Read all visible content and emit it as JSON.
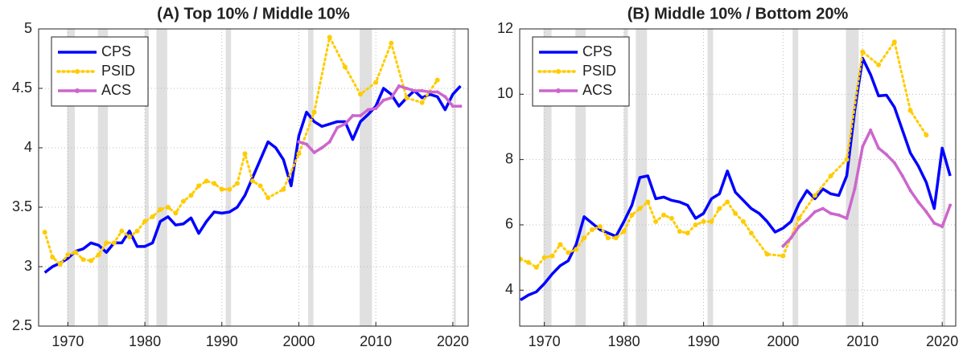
{
  "chart_data": [
    {
      "type": "line",
      "title": "(A) Top 10% / Middle 10%",
      "xlim": [
        1966.2,
        2022
      ],
      "xticks": [
        1970,
        1980,
        1990,
        2000,
        2010,
        2020
      ],
      "ylim": [
        2.5,
        5
      ],
      "yticks": [
        2.5,
        3,
        3.5,
        4,
        4.5,
        5
      ],
      "grid": true,
      "legend": "upper left",
      "shaded_periods": [
        [
          1969.9,
          1970.9
        ],
        [
          1973.9,
          1975.2
        ],
        [
          1980.0,
          1980.5
        ],
        [
          1981.5,
          1982.9
        ],
        [
          1990.5,
          1991.2
        ],
        [
          2001.2,
          2001.9
        ],
        [
          2007.9,
          2009.5
        ],
        [
          2020.1,
          2020.4
        ]
      ],
      "series": [
        {
          "name": "CPS",
          "color": "#0000ff",
          "line_style": "solid",
          "marker": "none",
          "x": [
            1967,
            1968,
            1969,
            1970,
            1971,
            1972,
            1973,
            1974,
            1975,
            1976,
            1977,
            1978,
            1979,
            1980,
            1981,
            1982,
            1983,
            1984,
            1985,
            1986,
            1987,
            1988,
            1989,
            1990,
            1991,
            1992,
            1993,
            1994,
            1995,
            1996,
            1997,
            1998,
            1999,
            2000,
            2001,
            2002,
            2003,
            2004,
            2005,
            2006,
            2007,
            2008,
            2009,
            2010,
            2011,
            2012,
            2013,
            2014,
            2015,
            2016,
            2017,
            2018,
            2019,
            2020,
            2021
          ],
          "values": [
            2.95,
            3.0,
            3.03,
            3.07,
            3.13,
            3.15,
            3.2,
            3.18,
            3.12,
            3.2,
            3.2,
            3.3,
            3.17,
            3.17,
            3.2,
            3.38,
            3.42,
            3.35,
            3.36,
            3.41,
            3.28,
            3.38,
            3.46,
            3.45,
            3.46,
            3.5,
            3.6,
            3.75,
            3.9,
            4.05,
            4.0,
            3.9,
            3.68,
            4.1,
            4.3,
            4.22,
            4.18,
            4.2,
            4.22,
            4.22,
            4.07,
            4.22,
            4.28,
            4.35,
            4.5,
            4.45,
            4.35,
            4.42,
            4.48,
            4.42,
            4.45,
            4.43,
            4.32,
            4.45,
            4.52
          ]
        },
        {
          "name": "PSID",
          "color": "#ffcc00",
          "line_style": "dotted",
          "marker": "dot",
          "x": [
            1967,
            1968,
            1969,
            1970,
            1971,
            1972,
            1973,
            1974,
            1975,
            1976,
            1977,
            1978,
            1979,
            1980,
            1981,
            1982,
            1983,
            1984,
            1985,
            1986,
            1987,
            1988,
            1989,
            1990,
            1991,
            1992,
            1993,
            1994,
            1995,
            1996,
            1998,
            2000,
            2002,
            2004,
            2006,
            2008,
            2010,
            2012,
            2014,
            2016,
            2018
          ],
          "values": [
            3.29,
            3.08,
            3.02,
            3.1,
            3.12,
            3.06,
            3.05,
            3.1,
            3.2,
            3.2,
            3.3,
            3.25,
            3.3,
            3.38,
            3.42,
            3.48,
            3.5,
            3.45,
            3.55,
            3.6,
            3.68,
            3.72,
            3.7,
            3.65,
            3.65,
            3.7,
            3.95,
            3.72,
            3.68,
            3.58,
            3.65,
            3.95,
            4.3,
            4.93,
            4.68,
            4.45,
            4.55,
            4.88,
            4.42,
            4.38,
            4.57
          ]
        },
        {
          "name": "ACS",
          "color": "#cc66cc",
          "line_style": "solid",
          "marker": "plus",
          "x": [
            2000,
            2001,
            2002,
            2003,
            2004,
            2005,
            2006,
            2007,
            2008,
            2009,
            2010,
            2011,
            2012,
            2013,
            2014,
            2015,
            2016,
            2017,
            2018,
            2019,
            2020,
            2021
          ],
          "values": [
            4.05,
            4.03,
            3.96,
            4.0,
            4.05,
            4.17,
            4.2,
            4.27,
            4.27,
            4.32,
            4.33,
            4.4,
            4.42,
            4.52,
            4.5,
            4.48,
            4.48,
            4.47,
            4.47,
            4.43,
            4.35,
            4.35
          ]
        }
      ]
    },
    {
      "type": "line",
      "title": "(B) Middle 10% / Bottom 20%",
      "xlim": [
        1966.9,
        2021.7
      ],
      "xticks": [
        1970,
        1980,
        1990,
        2000,
        2010,
        2020
      ],
      "ylim": [
        2.9,
        12
      ],
      "yticks": [
        4,
        6,
        8,
        10,
        12
      ],
      "grid": true,
      "legend": "upper left",
      "shaded_periods": [
        [
          1969.9,
          1970.9
        ],
        [
          1973.9,
          1975.2
        ],
        [
          1980.0,
          1980.5
        ],
        [
          1981.5,
          1982.9
        ],
        [
          1990.5,
          1991.2
        ],
        [
          2001.2,
          2001.9
        ],
        [
          2007.9,
          2009.5
        ],
        [
          2020.1,
          2020.4
        ]
      ],
      "series": [
        {
          "name": "CPS",
          "color": "#0000ff",
          "line_style": "solid",
          "marker": "none",
          "x": [
            1967,
            1968,
            1969,
            1970,
            1971,
            1972,
            1973,
            1974,
            1975,
            1976,
            1977,
            1978,
            1979,
            1980,
            1981,
            1982,
            1983,
            1984,
            1985,
            1986,
            1987,
            1988,
            1989,
            1990,
            1991,
            1992,
            1993,
            1994,
            1995,
            1996,
            1997,
            1998,
            1999,
            2000,
            2001,
            2002,
            2003,
            2004,
            2005,
            2006,
            2007,
            2008,
            2009,
            2010,
            2011,
            2012,
            2013,
            2014,
            2015,
            2016,
            2017,
            2018,
            2019,
            2020,
            2021
          ],
          "values": [
            3.7,
            3.85,
            3.95,
            4.2,
            4.5,
            4.75,
            4.9,
            5.4,
            6.25,
            6.05,
            5.85,
            5.75,
            5.65,
            6.1,
            6.6,
            7.45,
            7.5,
            6.8,
            6.85,
            6.75,
            6.7,
            6.6,
            6.2,
            6.35,
            6.8,
            6.95,
            7.65,
            7.0,
            6.75,
            6.5,
            6.35,
            6.1,
            5.78,
            5.9,
            6.1,
            6.65,
            7.05,
            6.8,
            7.1,
            6.95,
            6.9,
            7.5,
            9.5,
            11.1,
            10.6,
            9.95,
            9.97,
            9.6,
            8.9,
            8.2,
            7.8,
            7.3,
            6.5,
            8.35,
            7.5
          ]
        },
        {
          "name": "PSID",
          "color": "#ffcc00",
          "line_style": "dotted",
          "marker": "dot",
          "x": [
            1967,
            1968,
            1969,
            1970,
            1971,
            1972,
            1973,
            1974,
            1975,
            1976,
            1977,
            1978,
            1979,
            1980,
            1981,
            1982,
            1983,
            1984,
            1985,
            1986,
            1987,
            1988,
            1989,
            1990,
            1991,
            1992,
            1993,
            1994,
            1995,
            1996,
            1998,
            2000,
            2002,
            2004,
            2006,
            2008,
            2010,
            2012,
            2014,
            2016,
            2018
          ],
          "values": [
            4.95,
            4.85,
            4.7,
            5.0,
            5.05,
            5.4,
            5.15,
            5.25,
            5.6,
            5.85,
            5.95,
            5.6,
            5.6,
            5.8,
            6.3,
            6.5,
            6.7,
            6.1,
            6.3,
            6.2,
            5.8,
            5.75,
            6.0,
            6.1,
            6.1,
            6.5,
            6.7,
            6.35,
            6.1,
            5.75,
            5.1,
            5.05,
            6.2,
            6.9,
            7.5,
            8.0,
            11.3,
            10.9,
            11.6,
            9.5,
            8.75
          ]
        },
        {
          "name": "ACS",
          "color": "#cc66cc",
          "line_style": "solid",
          "marker": "plus",
          "x": [
            2000,
            2001,
            2002,
            2003,
            2004,
            2005,
            2006,
            2007,
            2008,
            2009,
            2010,
            2011,
            2012,
            2013,
            2014,
            2015,
            2016,
            2017,
            2018,
            2019,
            2020,
            2021
          ],
          "values": [
            5.35,
            5.6,
            5.95,
            6.15,
            6.4,
            6.5,
            6.35,
            6.3,
            6.2,
            7.1,
            8.4,
            8.9,
            8.35,
            8.15,
            7.9,
            7.5,
            7.05,
            6.7,
            6.4,
            6.05,
            5.95,
            6.6
          ]
        }
      ]
    }
  ]
}
